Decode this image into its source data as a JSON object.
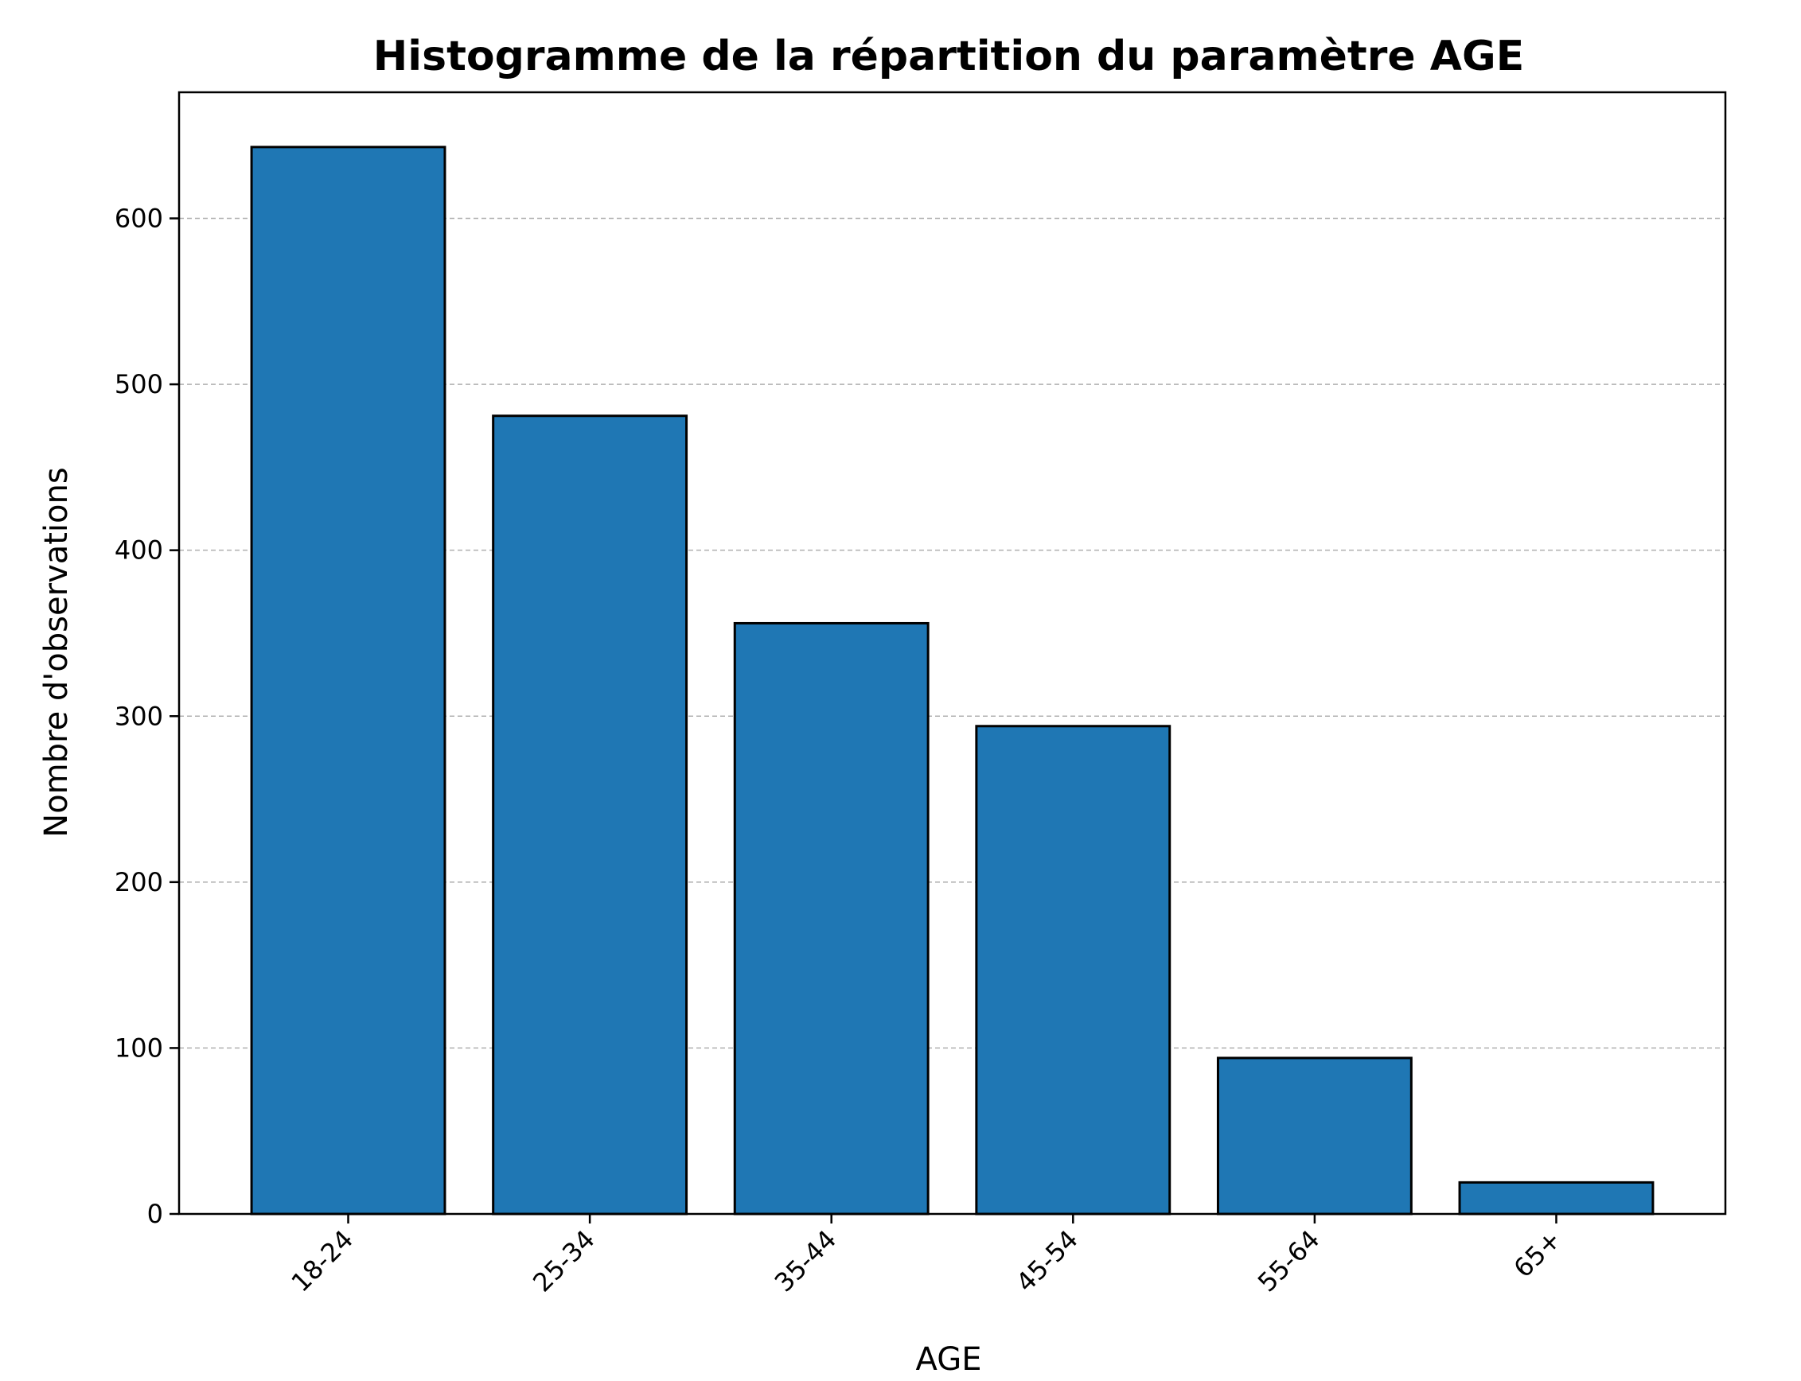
{
  "chart_data": {
    "type": "bar",
    "title": "Histogramme de la répartition du paramètre AGE",
    "xlabel": "AGE",
    "ylabel": "Nombre d'observations",
    "categories": [
      "18-24",
      "25-34",
      "35-44",
      "45-54",
      "55-64",
      "65+"
    ],
    "values": [
      643,
      481,
      356,
      294,
      94,
      19
    ],
    "ylim": [
      0,
      676
    ],
    "yticks": [
      0,
      100,
      200,
      300,
      400,
      500,
      600
    ],
    "grid": "y-dashed",
    "bar_color": "#1f77b4",
    "edge_color": "#000000",
    "grid_color": "#b0b0b0"
  }
}
